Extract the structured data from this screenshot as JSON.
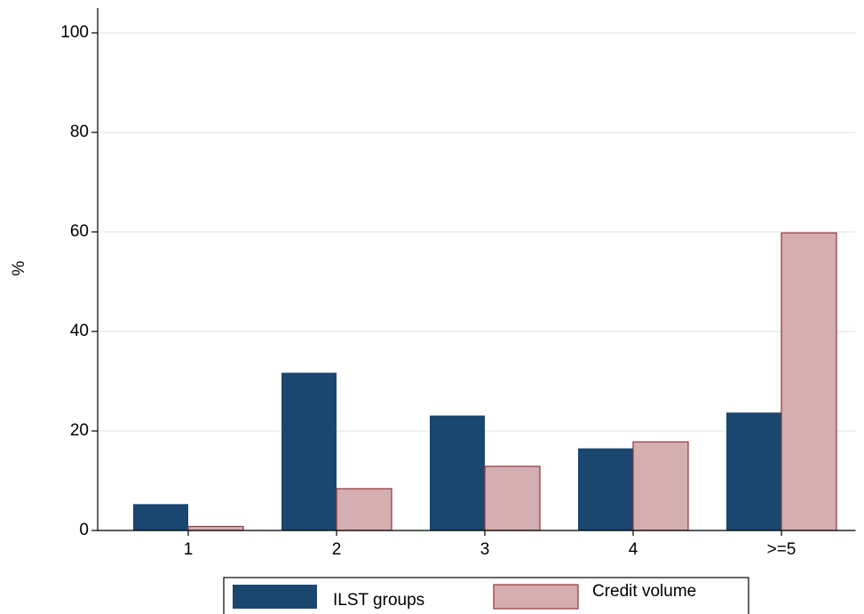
{
  "chart_data": {
    "type": "bar",
    "y_label": "%",
    "categories": [
      "1",
      "2",
      "3",
      "4",
      ">=5"
    ],
    "series": [
      {
        "name": "ILST groups",
        "color": "#1a476f",
        "values": [
          5.3,
          31.7,
          23.1,
          16.5,
          23.7
        ]
      },
      {
        "name": "Credit volume",
        "color": "#d4aeb0",
        "values": [
          0.8,
          8.4,
          12.9,
          17.8,
          59.8
        ]
      }
    ],
    "ylim": [
      0,
      105
    ],
    "yticks": [
      0,
      20,
      40,
      60,
      80,
      100
    ],
    "grid": true,
    "legend": "bottom"
  }
}
